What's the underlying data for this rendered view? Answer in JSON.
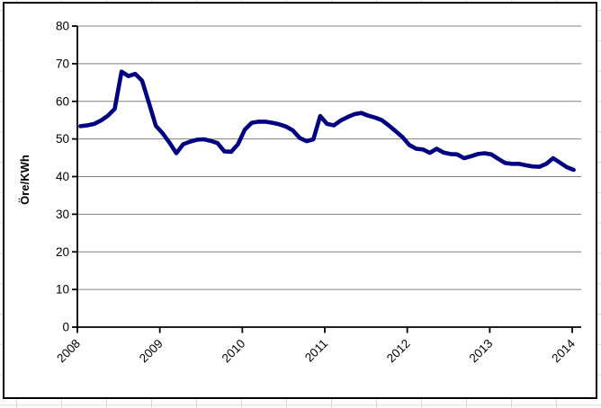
{
  "chart_data": {
    "type": "line",
    "title": "",
    "xlabel": "",
    "ylabel": "Öre/KWh",
    "ylim": [
      0,
      80
    ],
    "y_ticks": [
      0,
      10,
      20,
      30,
      40,
      50,
      60,
      70,
      80
    ],
    "x_tick_labels": [
      "2008",
      "2009",
      "2010",
      "2011",
      "2012",
      "2013",
      "2014"
    ],
    "grid": true,
    "legend_position": "none",
    "series": [
      {
        "name": "Öre/KWh",
        "color": "#000080",
        "months": [
          "2008-01",
          "2008-02",
          "2008-03",
          "2008-04",
          "2008-05",
          "2008-06",
          "2008-07",
          "2008-08",
          "2008-09",
          "2008-10",
          "2008-11",
          "2008-12",
          "2009-01",
          "2009-02",
          "2009-03",
          "2009-04",
          "2009-05",
          "2009-06",
          "2009-07",
          "2009-08",
          "2009-09",
          "2009-10",
          "2009-11",
          "2009-12",
          "2010-01",
          "2010-02",
          "2010-03",
          "2010-04",
          "2010-05",
          "2010-06",
          "2010-07",
          "2010-08",
          "2010-09",
          "2010-10",
          "2010-11",
          "2010-12",
          "2011-01",
          "2011-02",
          "2011-03",
          "2011-04",
          "2011-05",
          "2011-06",
          "2011-07",
          "2011-08",
          "2011-09",
          "2011-10",
          "2011-11",
          "2011-12",
          "2012-01",
          "2012-02",
          "2012-03",
          "2012-04",
          "2012-05",
          "2012-06",
          "2012-07",
          "2012-08",
          "2012-09",
          "2012-10",
          "2012-11",
          "2012-12",
          "2013-01",
          "2013-02",
          "2013-03",
          "2013-04",
          "2013-05",
          "2013-06",
          "2013-07",
          "2013-08",
          "2013-09",
          "2013-10",
          "2013-11",
          "2013-12",
          "2014-01"
        ],
        "values": [
          53.4,
          53.6,
          54.0,
          54.9,
          56.2,
          58.0,
          67.9,
          66.7,
          67.3,
          65.5,
          59.6,
          53.5,
          51.5,
          49.0,
          46.2,
          48.6,
          49.3,
          49.8,
          49.9,
          49.5,
          48.9,
          46.7,
          46.6,
          48.6,
          52.5,
          54.3,
          54.6,
          54.6,
          54.3,
          53.9,
          53.3,
          52.3,
          50.3,
          49.4,
          49.9,
          56.1,
          54.0,
          53.6,
          54.9,
          55.8,
          56.6,
          56.9,
          56.2,
          55.7,
          55.0,
          53.6,
          52.1,
          50.5,
          48.4,
          47.4,
          47.2,
          46.3,
          47.4,
          46.4,
          46.0,
          45.9,
          44.9,
          45.4,
          46.0,
          46.2,
          45.9,
          44.7,
          43.6,
          43.4,
          43.4,
          43.0,
          42.7,
          42.6,
          43.4,
          44.9,
          43.7,
          42.5,
          41.8
        ]
      }
    ]
  },
  "style": {
    "line_color": "#000080",
    "plot_grid_color": "#808080",
    "axis_color": "#000000",
    "chart_border_color": "#000000",
    "sheet_grid_color": "#d9d9d9",
    "background": "#ffffff"
  }
}
